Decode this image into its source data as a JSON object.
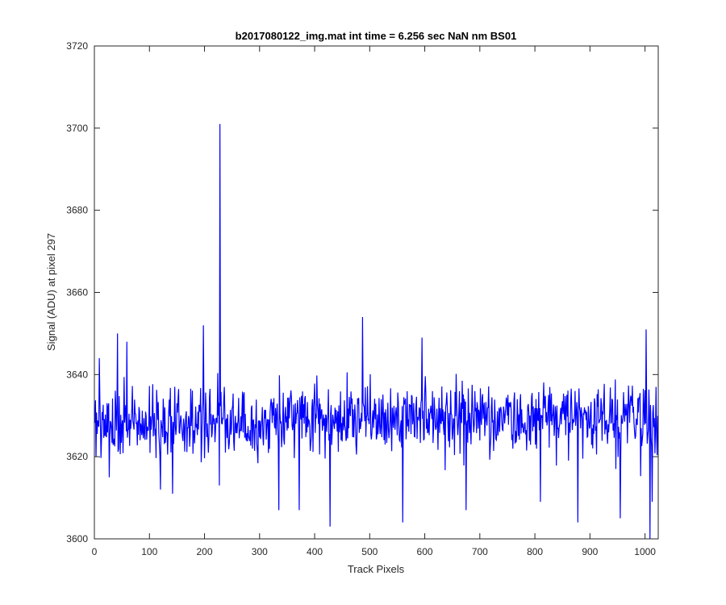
{
  "chart_data": {
    "type": "line",
    "title": "b2017080122_img.mat int time = 6.256 sec  NaN nm BS01",
    "xlabel": "Track Pixels",
    "ylabel": "Signal (ADU) at pixel 297",
    "xlim": [
      0,
      1024
    ],
    "ylim": [
      3600,
      3720
    ],
    "xticks": [
      0,
      100,
      200,
      300,
      400,
      500,
      600,
      700,
      800,
      900,
      1000
    ],
    "yticks": [
      3600,
      3620,
      3640,
      3660,
      3680,
      3700,
      3720
    ],
    "grid": false,
    "series": [
      {
        "color": "#0000ff",
        "x_start": 1,
        "x_step": 1,
        "noise_model": "random noise around a constant baseline, one spike",
        "baseline": 3629,
        "spread": 13,
        "spike": {
          "x": 228,
          "y": 3701
        },
        "notable_points": [
          {
            "x": 3,
            "y": 3620
          },
          {
            "x": 9,
            "y": 3644
          },
          {
            "x": 27,
            "y": 3615
          },
          {
            "x": 42,
            "y": 3650
          },
          {
            "x": 59,
            "y": 3648
          },
          {
            "x": 120,
            "y": 3612
          },
          {
            "x": 142,
            "y": 3611
          },
          {
            "x": 198,
            "y": 3652
          },
          {
            "x": 227,
            "y": 3613
          },
          {
            "x": 335,
            "y": 3607
          },
          {
            "x": 372,
            "y": 3607
          },
          {
            "x": 428,
            "y": 3603
          },
          {
            "x": 487,
            "y": 3654
          },
          {
            "x": 560,
            "y": 3604
          },
          {
            "x": 595,
            "y": 3649
          },
          {
            "x": 675,
            "y": 3607
          },
          {
            "x": 810,
            "y": 3609
          },
          {
            "x": 878,
            "y": 3604
          },
          {
            "x": 955,
            "y": 3605
          },
          {
            "x": 1002,
            "y": 3651
          },
          {
            "x": 1009,
            "y": 3600
          },
          {
            "x": 1013,
            "y": 3609
          },
          {
            "x": 1020,
            "y": 3637
          },
          {
            "x": 1024,
            "y": 3626
          }
        ]
      }
    ]
  }
}
